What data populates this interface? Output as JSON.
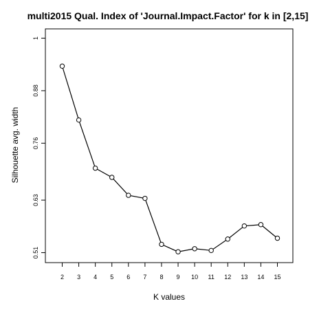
{
  "chart_data": {
    "type": "line",
    "title": "multi2015 Qual. Index of 'Journal.Impact.Factor' for k in [2,15]",
    "xlabel": "K values",
    "ylabel": "Silhouette avg. width",
    "x": [
      2,
      3,
      4,
      5,
      6,
      7,
      8,
      9,
      10,
      11,
      12,
      13,
      14,
      15
    ],
    "y": [
      0.936,
      0.813,
      0.703,
      0.682,
      0.641,
      0.634,
      0.529,
      0.512,
      0.519,
      0.515,
      0.541,
      0.571,
      0.574,
      0.543
    ],
    "x_ticks": [
      2,
      3,
      4,
      5,
      6,
      7,
      8,
      9,
      10,
      11,
      12,
      13,
      14,
      15
    ],
    "y_ticks": [
      0.51,
      0.63,
      0.76,
      0.88,
      1
    ],
    "y_tick_labels": [
      "0.51",
      "0.63",
      "0.76",
      "0.88",
      "1"
    ],
    "xlim": [
      2,
      15
    ],
    "ylim": [
      0.51,
      1
    ],
    "grid": false,
    "marker": "open-circle",
    "line_color": "#000000"
  }
}
